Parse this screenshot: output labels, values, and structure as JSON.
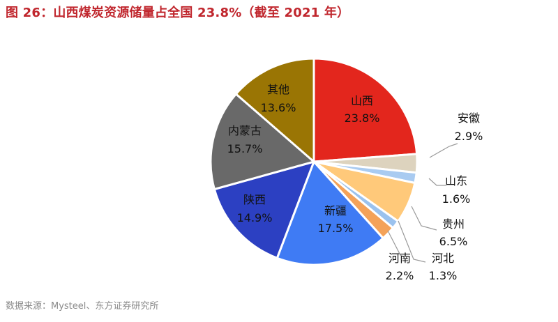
{
  "page": {
    "title": "图 26：山西煤炭资源储量占全国 23.8%（截至 2021 年）",
    "source": "数据来源：Mysteel、东方证券研究所"
  },
  "chart_data": {
    "type": "pie",
    "title": "图 26：山西煤炭资源储量占全国 23.8%（截至 2021 年）",
    "unit": "%",
    "slices": [
      {
        "name": "山西",
        "value": 23.8,
        "label": "23.8%",
        "color": "#E3261D"
      },
      {
        "name": "安徽",
        "value": 2.9,
        "label": "2.9%",
        "color": "#DDD3BE"
      },
      {
        "name": "山东",
        "value": 1.6,
        "label": "1.6%",
        "color": "#A9CBF1"
      },
      {
        "name": "贵州",
        "value": 6.5,
        "label": "6.5%",
        "color": "#FFC97A"
      },
      {
        "name": "河北",
        "value": 1.3,
        "label": "1.3%",
        "color": "#9BC2EE"
      },
      {
        "name": "河南",
        "value": 2.2,
        "label": "2.2%",
        "color": "#F4A259"
      },
      {
        "name": "新疆",
        "value": 17.5,
        "label": "17.5%",
        "color": "#3F7BF4"
      },
      {
        "name": "陕西",
        "value": 14.9,
        "label": "14.9%",
        "color": "#2C40C2"
      },
      {
        "name": "内蒙古",
        "value": 15.7,
        "label": "15.7%",
        "color": "#696969"
      },
      {
        "name": "其他",
        "value": 13.6,
        "label": "13.6%",
        "color": "#9A7504"
      }
    ],
    "start_angle_deg": 0,
    "direction": "clockwise",
    "label_placement": {
      "inside": [
        "山西",
        "新疆",
        "陕西",
        "内蒙古",
        "其他"
      ],
      "outside_with_leader": [
        "安徽",
        "山东",
        "贵州",
        "河北",
        "河南"
      ]
    }
  }
}
